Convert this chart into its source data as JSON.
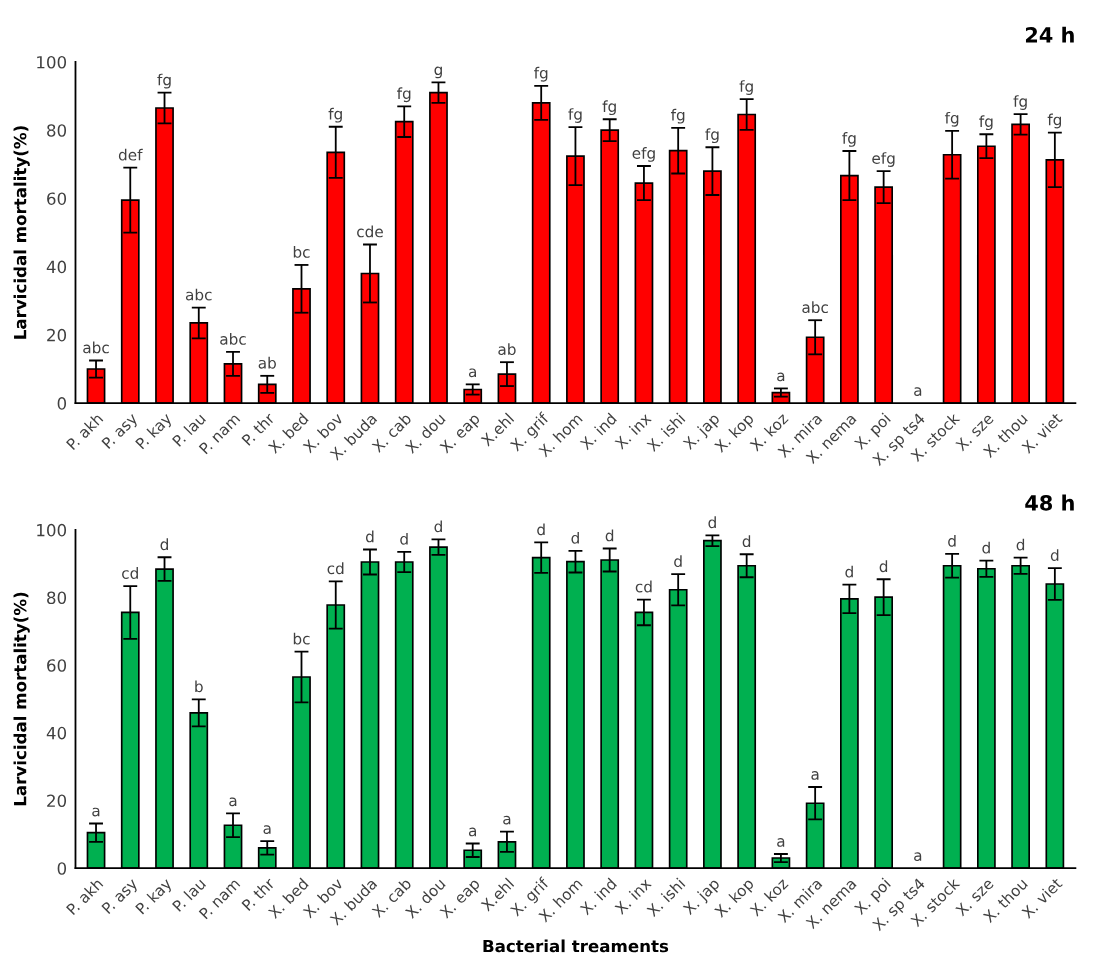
{
  "chart_data": [
    {
      "type": "bar",
      "title": "24 h",
      "ylabel": "Larvicidal mortality(%)",
      "categories": [
        "P. akh",
        "P. asy",
        "P. kay",
        "P. lau",
        "P. nam",
        "P. thr",
        "X. bed",
        "X. bov",
        "X. buda",
        "X. cab",
        "X. dou",
        "X. eap",
        "X.ehl",
        "X. grif",
        "X. hom",
        "X. ind",
        "X. inx",
        "X. ishi",
        "X. jap",
        "X. kop",
        "X. koz",
        "X. mira",
        "X. nema",
        "X. poi",
        "X. sp ts4",
        "X. stock",
        "X. sze",
        "X. thou",
        "X. viet"
      ],
      "values": [
        10,
        59.5,
        86.5,
        23.5,
        11.5,
        5.5,
        33.5,
        73.5,
        38,
        82.5,
        91,
        4,
        8.5,
        88,
        72.4,
        80,
        64.5,
        74,
        68,
        84.6,
        3.1,
        19.3,
        66.7,
        63.3,
        0,
        72.8,
        75.3,
        81.7,
        71.3
      ],
      "errors": [
        2.5,
        9.5,
        4.5,
        4.5,
        3.5,
        2.5,
        7,
        7.5,
        8.5,
        4.5,
        3,
        1.5,
        3.5,
        5,
        8.5,
        3.2,
        5,
        6.7,
        7,
        4.5,
        1.2,
        5,
        7.2,
        4.7,
        null,
        7,
        3.5,
        3,
        8
      ],
      "value_labels": [
        "abc",
        "def",
        "fg",
        "abc",
        "abc",
        "ab",
        "bc",
        "fg",
        "cde",
        "fg",
        "g",
        "a",
        "ab",
        "fg",
        "fg",
        "fg",
        "efg",
        "fg",
        "fg",
        "fg",
        "a",
        "abc",
        "fg",
        "efg",
        "a",
        "fg",
        "fg",
        "fg",
        "fg"
      ],
      "color": "#ff0000",
      "ylim": [
        0,
        100
      ],
      "yticks": [
        0,
        20,
        40,
        60,
        80,
        100
      ],
      "grid": false,
      "legend": false
    },
    {
      "type": "bar",
      "title": "48 h",
      "ylabel": "Larvicidal mortality(%)",
      "xlabel": "Bacterial treaments",
      "categories": [
        "P. akh",
        "P. asy",
        "P. kay",
        "P. lau",
        "P. nam",
        "P. thr",
        "X. bed",
        "X. bov",
        "X. buda",
        "X. cab",
        "X. dou",
        "X. eap",
        "X.ehl",
        "X. grif",
        "X. hom",
        "X. ind",
        "X. inx",
        "X. ishi",
        "X. jap",
        "X. kop",
        "X. koz",
        "X. mira",
        "X. nema",
        "X. poi",
        "X. sp ts4",
        "X. stock",
        "X. sze",
        "X. thou",
        "X. viet"
      ],
      "values": [
        10.5,
        75.6,
        88.4,
        45.9,
        12.7,
        6,
        56.5,
        77.8,
        90.5,
        90.5,
        94.9,
        5.3,
        7.8,
        91.8,
        90.6,
        91.1,
        75.6,
        82.3,
        96.8,
        89.4,
        3,
        19.2,
        79.6,
        80.1,
        0,
        89.4,
        88.5,
        89.4,
        84
      ],
      "errors": [
        2.7,
        7.8,
        3.5,
        4,
        3.5,
        2,
        7.5,
        7,
        3.7,
        3,
        2.3,
        2,
        3,
        4.5,
        3.2,
        3.4,
        3.8,
        4.6,
        1.6,
        3.4,
        1.2,
        4.8,
        4.2,
        5.3,
        null,
        3.5,
        2.4,
        2.4,
        4.7
      ],
      "value_labels": [
        "a",
        "cd",
        "d",
        "b",
        "a",
        "a",
        "bc",
        "cd",
        "d",
        "d",
        "d",
        "a",
        "a",
        "d",
        "d",
        "d",
        "cd",
        "d",
        "d",
        "d",
        "a",
        "a",
        "d",
        "d",
        "a",
        "d",
        "d",
        "d",
        "d"
      ],
      "color": "#00b050",
      "ylim": [
        0,
        100
      ],
      "yticks": [
        0,
        20,
        40,
        60,
        80,
        100
      ],
      "grid": false,
      "legend": false
    }
  ]
}
